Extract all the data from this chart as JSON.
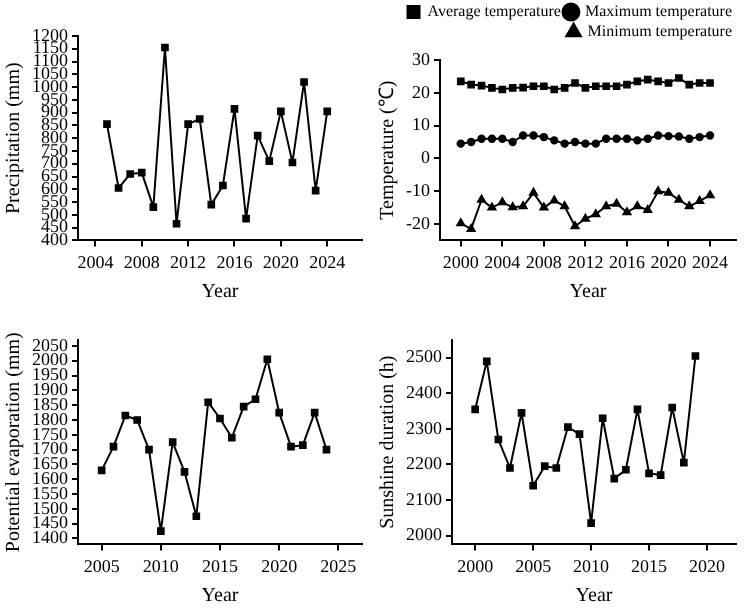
{
  "chart_data": [
    {
      "type": "line",
      "xlabel": "Year",
      "ylabel": "Precipitation (mm)",
      "marker": "square",
      "legend": false,
      "grid": false,
      "x": [
        2005,
        2006,
        2007,
        2008,
        2009,
        2010,
        2011,
        2012,
        2013,
        2014,
        2015,
        2016,
        2017,
        2018,
        2019,
        2020,
        2021,
        2022,
        2023,
        2024
      ],
      "values": [
        855,
        605,
        660,
        665,
        530,
        1155,
        465,
        855,
        875,
        540,
        615,
        915,
        485,
        810,
        710,
        905,
        705,
        1020,
        595,
        905
      ],
      "color": "#000000",
      "xlim": [
        2002.5,
        2027
      ],
      "xticks": [
        2004,
        2008,
        2012,
        2016,
        2020,
        2024
      ],
      "ylim": [
        400,
        1200
      ],
      "yticks": [
        400,
        450,
        500,
        550,
        600,
        650,
        700,
        750,
        800,
        850,
        900,
        950,
        1000,
        1050,
        1100,
        1150,
        1200
      ]
    },
    {
      "type": "line",
      "xlabel": "Year",
      "ylabel": "Temperature (℃)",
      "legend": "top",
      "grid": false,
      "x": [
        2000,
        2001,
        2002,
        2003,
        2004,
        2005,
        2006,
        2007,
        2008,
        2009,
        2010,
        2011,
        2012,
        2013,
        2014,
        2015,
        2016,
        2017,
        2018,
        2019,
        2020,
        2021,
        2022,
        2023,
        2024
      ],
      "series": [
        {
          "name": "Average temperature",
          "color": "#000000",
          "marker": "square",
          "values": [
            23.5,
            22.5,
            22.2,
            21.5,
            21,
            21.5,
            21.6,
            22,
            22,
            21,
            21.5,
            23,
            21.5,
            22,
            22,
            22,
            22.5,
            23.5,
            24,
            23.5,
            23,
            24.5,
            22.5,
            23,
            23
          ]
        },
        {
          "name": "Maximum temperature",
          "color": "#000000",
          "marker": "circle",
          "values": [
            4.5,
            5,
            6,
            6,
            6,
            5,
            7,
            7,
            6.5,
            5.5,
            4.5,
            5,
            4.5,
            4.5,
            6,
            6,
            6,
            5.5,
            6,
            7,
            6.8,
            6.7,
            6,
            6.5,
            7
          ]
        },
        {
          "name": "Minimum temperature",
          "color": "#000000",
          "marker": "triangle",
          "values": [
            -19.8,
            -21.5,
            -12.6,
            -15,
            -13.4,
            -14.9,
            -14.6,
            -10.5,
            -15,
            -12.8,
            -14.6,
            -20.7,
            -18.4,
            -17,
            -14.6,
            -13.8,
            -16.4,
            -14.6,
            -15.7,
            -10,
            -10.5,
            -12.6,
            -14.6,
            -13,
            -11.2
          ]
        }
      ],
      "xlim": [
        1998,
        2026.5
      ],
      "xticks": [
        2000,
        2004,
        2008,
        2012,
        2016,
        2020,
        2024
      ],
      "ylim": [
        -25,
        30
      ],
      "yticks": [
        -20,
        -10,
        0,
        10,
        20,
        30
      ]
    },
    {
      "type": "line",
      "xlabel": "Year",
      "ylabel": "Potential evaporation (mm)",
      "marker": "square",
      "legend": false,
      "grid": false,
      "x": [
        2005,
        2006,
        2007,
        2008,
        2009,
        2010,
        2011,
        2012,
        2013,
        2014,
        2015,
        2016,
        2017,
        2018,
        2019,
        2020,
        2021,
        2022,
        2023,
        2024
      ],
      "values": [
        1630,
        1710,
        1815,
        1800,
        1700,
        1425,
        1725,
        1625,
        1475,
        1860,
        1805,
        1740,
        1845,
        1870,
        2005,
        1825,
        1710,
        1715,
        1825,
        1700
      ],
      "color": "#000000",
      "xlim": [
        2003,
        2027
      ],
      "xticks": [
        2005,
        2010,
        2015,
        2020,
        2025
      ],
      "ylim": [
        1380,
        2070
      ],
      "yticks": [
        1400,
        1450,
        1500,
        1550,
        1600,
        1650,
        1700,
        1750,
        1800,
        1850,
        1900,
        1950,
        2000,
        2050
      ]
    },
    {
      "type": "line",
      "xlabel": "Year",
      "ylabel": "Sunshine duration (h)",
      "marker": "square",
      "legend": false,
      "grid": false,
      "x": [
        2000,
        2001,
        2002,
        2003,
        2004,
        2005,
        2006,
        2007,
        2008,
        2009,
        2010,
        2011,
        2012,
        2013,
        2014,
        2015,
        2016,
        2017,
        2018,
        2019
      ],
      "values": [
        2355,
        2490,
        2270,
        2190,
        2345,
        2140,
        2195,
        2190,
        2305,
        2285,
        2035,
        2330,
        2160,
        2185,
        2355,
        2175,
        2170,
        2360,
        2205,
        2505
      ],
      "color": "#000000",
      "xlim": [
        1998,
        2022.5
      ],
      "xticks": [
        2000,
        2005,
        2010,
        2015,
        2020
      ],
      "ylim": [
        1975,
        2550
      ],
      "yticks": [
        2000,
        2100,
        2200,
        2300,
        2400,
        2500
      ]
    }
  ]
}
